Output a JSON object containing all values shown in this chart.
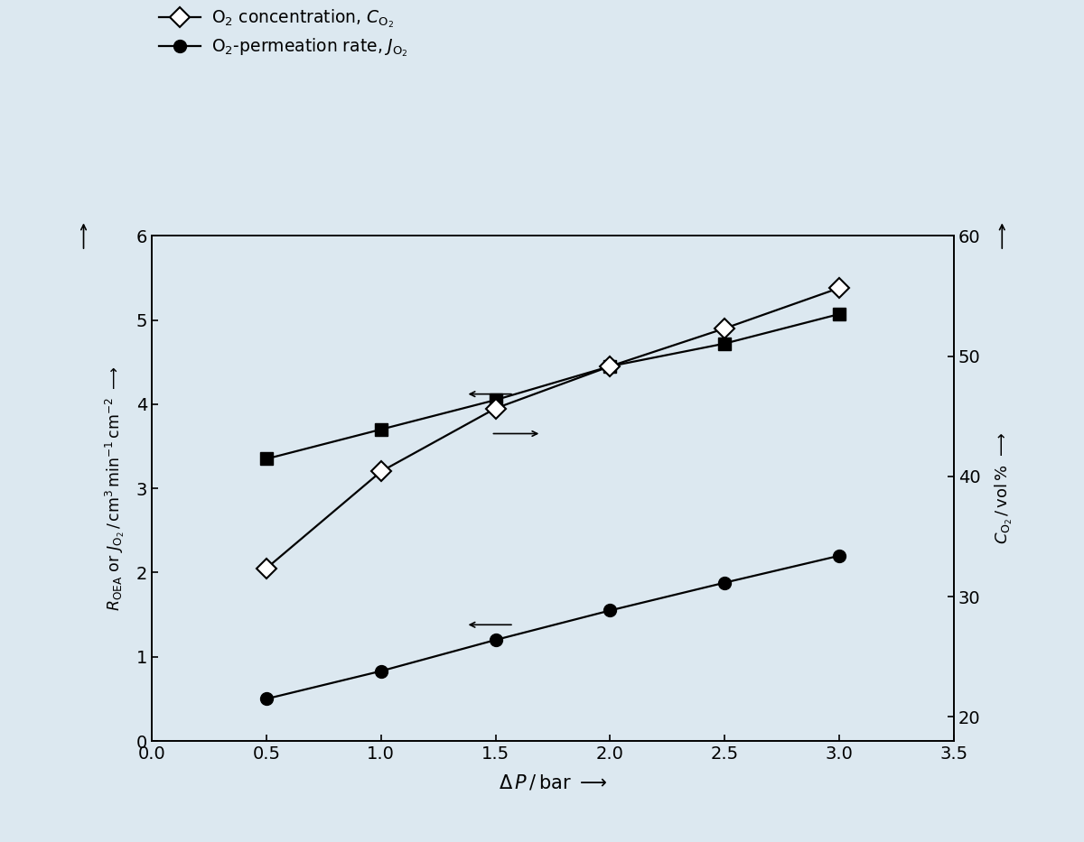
{
  "background_color": "#dce8f0",
  "x": [
    0.5,
    1.0,
    1.5,
    2.0,
    2.5,
    3.0
  ],
  "R_OEA": [
    3.35,
    3.7,
    4.05,
    4.45,
    4.72,
    5.07
  ],
  "C_O2_left": [
    2.05,
    3.2,
    3.95,
    4.45,
    4.9,
    5.38
  ],
  "J_O2": [
    0.5,
    0.83,
    1.2,
    1.55,
    1.88,
    2.2
  ],
  "xlim": [
    0.0,
    3.5
  ],
  "ylim_left": [
    0,
    6
  ],
  "ylim_right": [
    18,
    60
  ],
  "xticks": [
    0.0,
    0.5,
    1.0,
    1.5,
    2.0,
    2.5,
    3.0,
    3.5
  ],
  "yticks_left": [
    0,
    1,
    2,
    3,
    4,
    5,
    6
  ],
  "yticks_right": [
    20,
    30,
    40,
    50,
    60
  ]
}
